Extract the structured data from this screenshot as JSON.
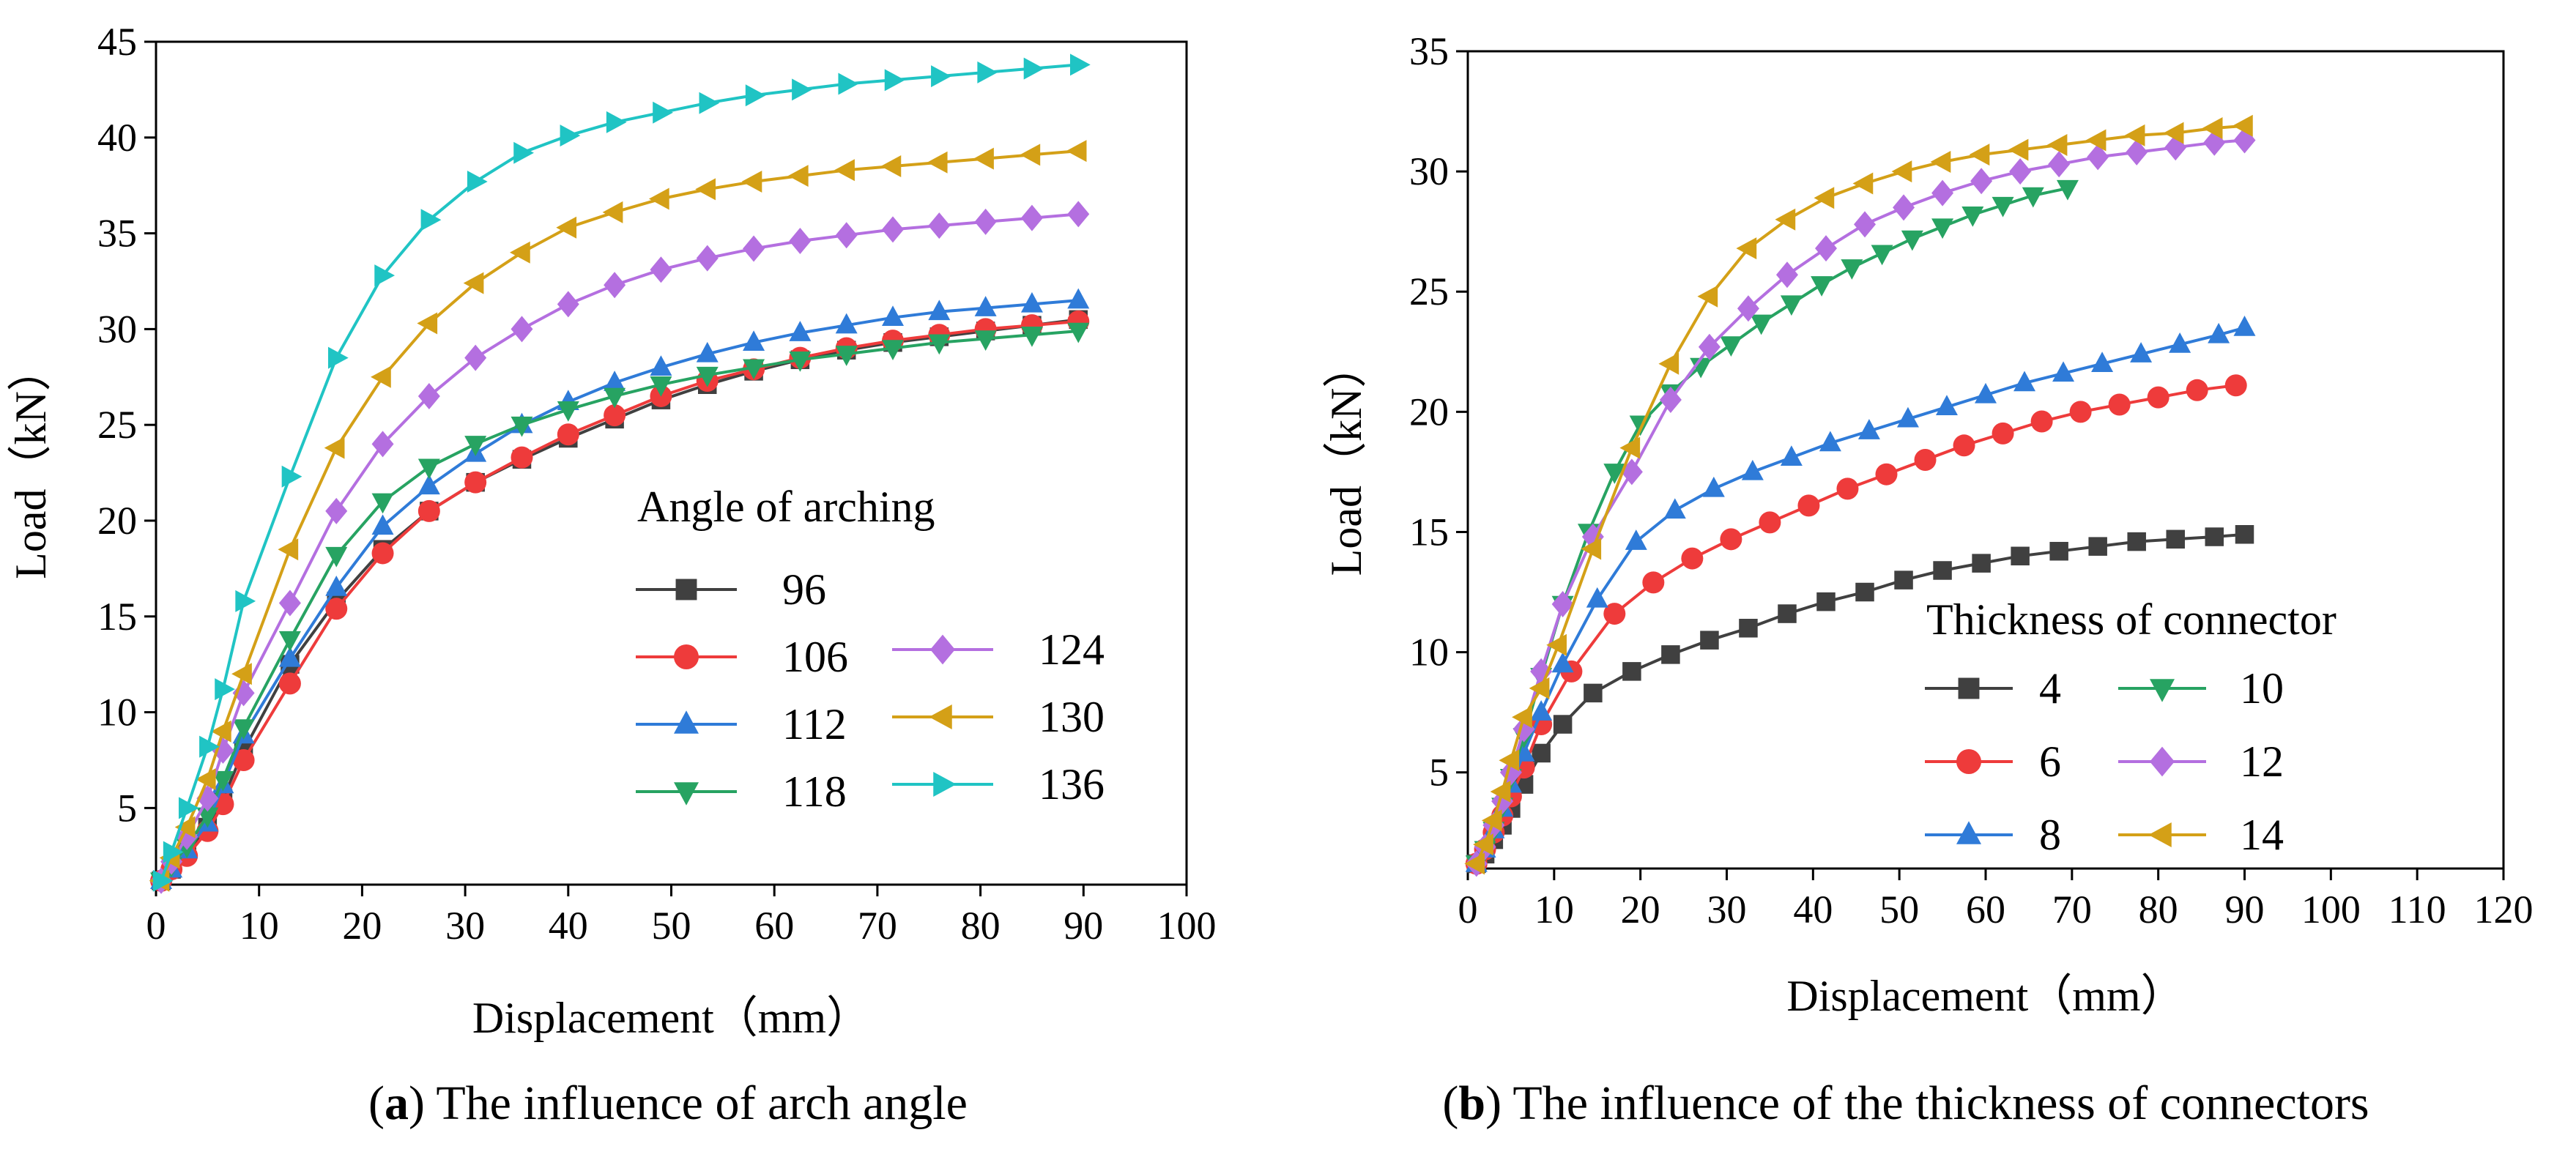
{
  "chart_data": [
    {
      "type": "line",
      "caption_letter": "a",
      "caption_text": "The influence of arch angle",
      "xlabel": "Displacement（mm）",
      "ylabel": "Load（kN）",
      "xlim": [
        0,
        100
      ],
      "ylim": [
        1,
        45
      ],
      "xticks": [
        0,
        10,
        20,
        30,
        40,
        50,
        60,
        70,
        80,
        90,
        100
      ],
      "xtick_labels": [
        "0",
        "10",
        "20",
        "30",
        "40",
        "50",
        "60",
        "70",
        "80",
        "90",
        "100"
      ],
      "yticks": [
        5,
        10,
        15,
        20,
        25,
        30,
        35,
        40,
        45
      ],
      "ytick_labels": [
        "5",
        "10",
        "15",
        "20",
        "25",
        "30",
        "35",
        "40",
        "45"
      ],
      "grid": false,
      "legend_title": "Angle of arching",
      "legend_position": "bottom-right",
      "x": [
        0.5,
        1.5,
        3,
        5,
        6.5,
        8.5,
        13,
        17.5,
        22,
        26.5,
        31,
        35.5,
        40,
        44.5,
        49,
        53.5,
        58,
        62.5,
        67,
        71.5,
        76,
        80.5,
        85,
        89.5
      ],
      "series": [
        {
          "name": "96",
          "color": "#404040",
          "marker": "square",
          "values": [
            1.2,
            1.8,
            2.7,
            4.0,
            5.5,
            8.0,
            12.5,
            15.8,
            18.5,
            20.5,
            22.0,
            23.2,
            24.3,
            25.3,
            26.3,
            27.1,
            27.8,
            28.4,
            28.9,
            29.3,
            29.6,
            29.9,
            30.2,
            30.5
          ]
        },
        {
          "name": "106",
          "color": "#ee3b3b",
          "marker": "circle",
          "values": [
            1.2,
            1.8,
            2.5,
            3.8,
            5.2,
            7.5,
            11.5,
            15.4,
            18.3,
            20.5,
            22.0,
            23.3,
            24.5,
            25.5,
            26.5,
            27.3,
            27.9,
            28.5,
            29.0,
            29.4,
            29.7,
            30.0,
            30.2,
            30.4
          ]
        },
        {
          "name": "112",
          "color": "#2f7bd8",
          "marker": "triangle-up",
          "values": [
            1.2,
            1.8,
            2.8,
            4.2,
            6.2,
            8.8,
            12.8,
            16.5,
            19.7,
            21.8,
            23.5,
            25.0,
            26.2,
            27.2,
            28.0,
            28.7,
            29.3,
            29.8,
            30.2,
            30.6,
            30.9,
            31.1,
            31.3,
            31.5
          ]
        },
        {
          "name": "118",
          "color": "#27a362",
          "marker": "triangle-down",
          "values": [
            1.2,
            2.0,
            3.0,
            4.6,
            6.5,
            9.2,
            13.8,
            18.2,
            21.0,
            22.8,
            24.0,
            25.0,
            25.8,
            26.5,
            27.1,
            27.6,
            28.0,
            28.4,
            28.7,
            29.0,
            29.3,
            29.5,
            29.7,
            29.9
          ]
        },
        {
          "name": "124",
          "color": "#b46fe0",
          "marker": "diamond",
          "values": [
            1.2,
            2.2,
            3.5,
            5.5,
            8.0,
            11.0,
            15.7,
            20.5,
            24.0,
            26.5,
            28.5,
            30.0,
            31.3,
            32.3,
            33.1,
            33.7,
            34.2,
            34.6,
            34.9,
            35.2,
            35.4,
            35.6,
            35.8,
            36.0
          ]
        },
        {
          "name": "130",
          "color": "#d4a017",
          "marker": "triangle-left",
          "values": [
            1.2,
            2.4,
            4.0,
            6.5,
            9.0,
            12.0,
            18.5,
            23.8,
            27.5,
            30.3,
            32.4,
            34.0,
            35.3,
            36.1,
            36.8,
            37.3,
            37.7,
            38.0,
            38.3,
            38.5,
            38.7,
            38.9,
            39.1,
            39.3
          ]
        },
        {
          "name": "136",
          "color": "#20c4c4",
          "marker": "triangle-right",
          "values": [
            1.2,
            2.7,
            5.0,
            8.2,
            11.2,
            15.8,
            22.3,
            28.5,
            32.8,
            35.7,
            37.7,
            39.2,
            40.1,
            40.8,
            41.3,
            41.8,
            42.2,
            42.5,
            42.8,
            43.0,
            43.2,
            43.4,
            43.6,
            43.8
          ]
        }
      ]
    },
    {
      "type": "line",
      "caption_letter": "b",
      "caption_text": "The influence of the thickness of connectors",
      "xlabel": "Displacement（mm）",
      "ylabel": "Load（kN）",
      "xlim": [
        0,
        120
      ],
      "ylim": [
        1,
        35
      ],
      "xticks": [
        0,
        10,
        20,
        30,
        40,
        50,
        60,
        70,
        80,
        90,
        100,
        110,
        120
      ],
      "xtick_labels": [
        "0",
        "10",
        "20",
        "30",
        "40",
        "50",
        "60",
        "70",
        "80",
        "90",
        "100",
        "110",
        "120"
      ],
      "yticks": [
        5,
        10,
        15,
        20,
        25,
        30,
        35
      ],
      "ytick_labels": [
        "5",
        "10",
        "15",
        "20",
        "25",
        "30",
        "35"
      ],
      "grid": false,
      "legend_title": "Thickness of connector",
      "legend_position": "bottom-right",
      "series": [
        {
          "name": "4",
          "color": "#404040",
          "marker": "square",
          "x": [
            1,
            2,
            3,
            4,
            5,
            6.5,
            8.5,
            11,
            14.5,
            19,
            23.5,
            28,
            32.5,
            37,
            41.5,
            46,
            50.5,
            55,
            59.5,
            64,
            68.5,
            73,
            77.5,
            82,
            86.5,
            90
          ],
          "values": [
            1.2,
            1.6,
            2.2,
            2.8,
            3.5,
            4.5,
            5.8,
            7.0,
            8.3,
            9.2,
            9.9,
            10.5,
            11.0,
            11.6,
            12.1,
            12.5,
            13.0,
            13.4,
            13.7,
            14.0,
            14.2,
            14.4,
            14.6,
            14.7,
            14.8,
            14.9
          ]
        },
        {
          "name": "6",
          "color": "#ee3b3b",
          "marker": "circle",
          "x": [
            1,
            2,
            3,
            4,
            5,
            6.5,
            8.5,
            12,
            17,
            21.5,
            26,
            30.5,
            35,
            39.5,
            44,
            48.5,
            53,
            57.5,
            62,
            66.5,
            71,
            75.5,
            80,
            84.5,
            89
          ],
          "values": [
            1.2,
            1.8,
            2.5,
            3.2,
            4.0,
            5.2,
            7.0,
            9.2,
            11.6,
            12.9,
            13.9,
            14.7,
            15.4,
            16.1,
            16.8,
            17.4,
            18.0,
            18.6,
            19.1,
            19.6,
            20.0,
            20.3,
            20.6,
            20.9,
            21.1
          ]
        },
        {
          "name": "8",
          "color": "#2f7bd8",
          "marker": "triangle-up",
          "x": [
            1,
            2,
            3,
            4,
            5,
            6.5,
            8.5,
            11,
            15,
            19.5,
            24,
            28.5,
            33,
            37.5,
            42,
            46.5,
            51,
            55.5,
            60,
            64.5,
            69,
            73.5,
            78,
            82.5,
            87,
            90
          ],
          "values": [
            1.2,
            1.8,
            2.6,
            3.5,
            4.5,
            5.8,
            7.5,
            9.5,
            12.2,
            14.6,
            15.9,
            16.8,
            17.5,
            18.1,
            18.7,
            19.2,
            19.7,
            20.2,
            20.7,
            21.2,
            21.6,
            22.0,
            22.4,
            22.8,
            23.2,
            23.5
          ]
        },
        {
          "name": "10",
          "color": "#27a362",
          "marker": "triangle-down",
          "x": [
            1,
            2,
            3,
            4,
            5,
            6.5,
            8.5,
            11,
            14,
            17,
            20,
            23.5,
            27,
            30.5,
            34,
            37.5,
            41,
            44.5,
            48,
            51.5,
            55,
            58.5,
            62,
            65.5,
            69.5
          ],
          "values": [
            1.2,
            1.8,
            2.6,
            3.6,
            4.8,
            6.5,
            9.0,
            12.0,
            15.0,
            17.5,
            19.5,
            20.8,
            21.9,
            22.8,
            23.7,
            24.5,
            25.3,
            26.0,
            26.6,
            27.2,
            27.7,
            28.2,
            28.6,
            29.0,
            29.3
          ]
        },
        {
          "name": "12",
          "color": "#b46fe0",
          "marker": "diamond",
          "x": [
            1,
            2,
            3,
            4,
            5,
            6.5,
            8.5,
            11,
            14.5,
            19,
            23.5,
            28,
            32.5,
            37,
            41.5,
            46,
            50.5,
            55,
            59.5,
            64,
            68.5,
            73,
            77.5,
            82,
            86.5,
            90
          ],
          "values": [
            1.2,
            1.9,
            2.8,
            3.8,
            5.0,
            6.8,
            9.2,
            12.0,
            14.8,
            17.5,
            20.5,
            22.7,
            24.3,
            25.7,
            26.8,
            27.8,
            28.5,
            29.1,
            29.6,
            30.0,
            30.3,
            30.6,
            30.8,
            31.0,
            31.2,
            31.3
          ]
        },
        {
          "name": "14",
          "color": "#d4a017",
          "marker": "triangle-left",
          "x": [
            1,
            2,
            3,
            4,
            5,
            6.5,
            8.5,
            10.5,
            14.5,
            19,
            23.5,
            28,
            32.5,
            37,
            41.5,
            46,
            50.5,
            55,
            59.5,
            64,
            68.5,
            73,
            77.5,
            82,
            86.5,
            90
          ],
          "values": [
            1.2,
            2.0,
            3.0,
            4.2,
            5.5,
            7.3,
            8.5,
            10.3,
            14.3,
            18.5,
            22.0,
            24.8,
            26.8,
            28.0,
            28.9,
            29.5,
            30.0,
            30.4,
            30.7,
            30.9,
            31.1,
            31.3,
            31.5,
            31.6,
            31.8,
            31.9
          ]
        }
      ]
    }
  ]
}
